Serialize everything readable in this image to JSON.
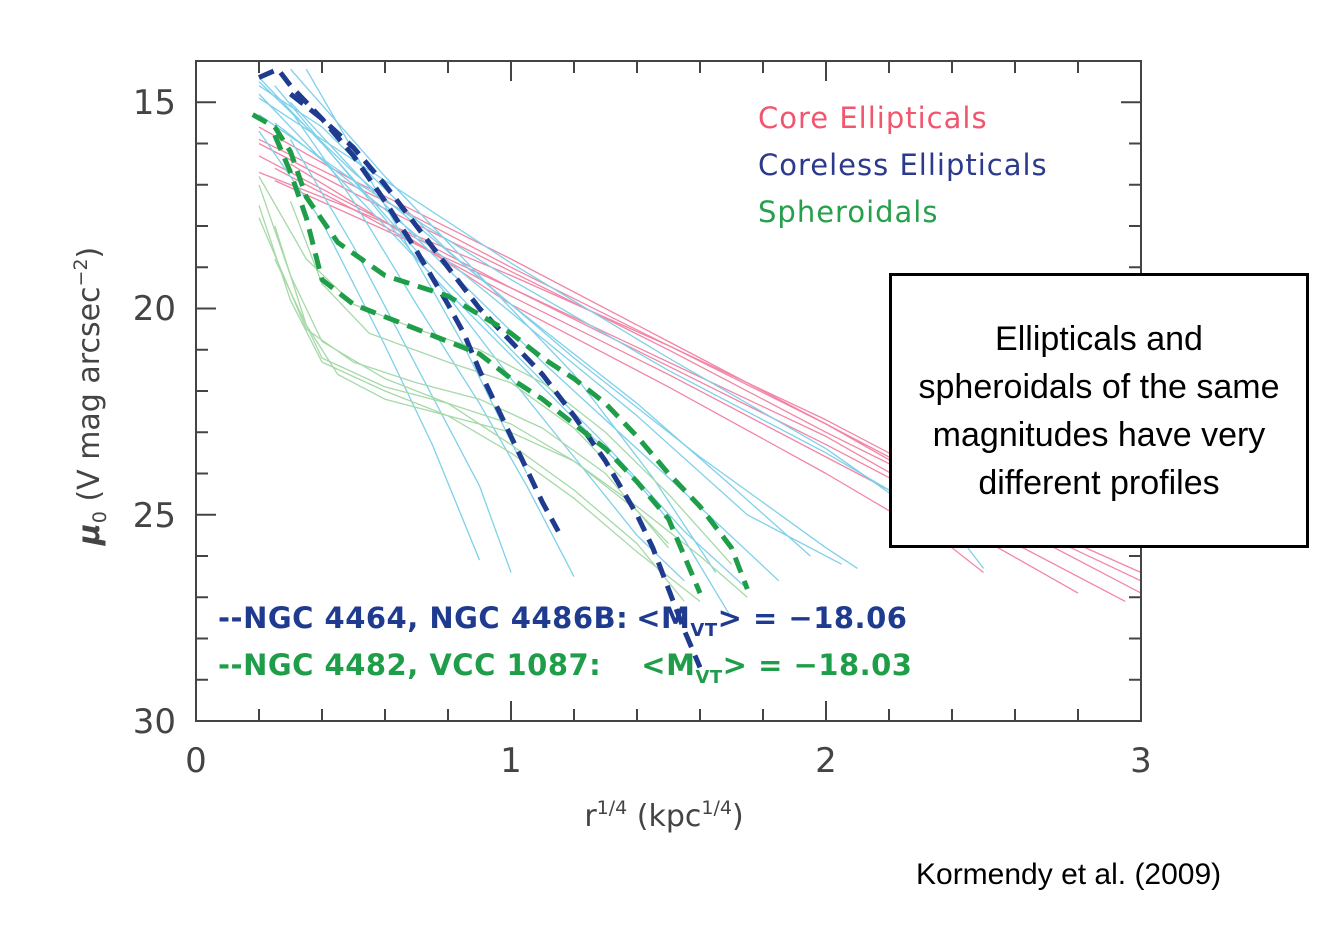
{
  "chart_data": {
    "type": "line",
    "xlabel": "r^{1/4}   (kpc^{1/4})",
    "ylabel": "μ₀   (V mag arcsec⁻²)",
    "xlim": [
      0,
      3
    ],
    "ylim": [
      30,
      14
    ],
    "y_inverted": true,
    "xticks": [
      "0",
      "1",
      "2",
      "3"
    ],
    "yticks": [
      "15",
      "20",
      "25",
      "30"
    ],
    "grid": false,
    "legend": {
      "placement": "top-right",
      "entries": [
        {
          "label": "Core Ellipticals",
          "color": "#f0566e"
        },
        {
          "label": "Coreless Ellipticals",
          "color": "#2b3a8c"
        },
        {
          "label": "Spheroidals",
          "color": "#27a04c"
        }
      ]
    },
    "annotations": [
      {
        "text": "--NGC 4464, NGC 4486B:",
        "mag_prefix": "<M",
        "mag_sub": "VT",
        "mag_suffix": "> = −18.06",
        "color": "#1f3b8f"
      },
      {
        "text": "--NGC 4482, VCC 1087:",
        "mag_prefix": "<M",
        "mag_sub": "VT",
        "mag_suffix": "> = −18.03",
        "color": "#1f9e4a"
      }
    ],
    "series": [
      {
        "group": "Core Ellipticals",
        "color": "#f286a6",
        "x": [
          0.2,
          0.5,
          1.0,
          1.5,
          2.0,
          2.5,
          3.0
        ],
        "values": [
          15.6,
          16.9,
          18.8,
          20.8,
          22.8,
          24.8,
          26.6
        ]
      },
      {
        "group": "Core Ellipticals",
        "color": "#f286a6",
        "x": [
          0.2,
          0.5,
          1.0,
          1.5,
          2.0,
          2.5,
          3.0
        ],
        "values": [
          16.0,
          17.2,
          19.1,
          21.0,
          23.0,
          24.9,
          26.9
        ]
      },
      {
        "group": "Core Ellipticals",
        "color": "#f286a6",
        "x": [
          0.2,
          0.5,
          1.0,
          1.5,
          2.0,
          2.5,
          2.95
        ],
        "values": [
          16.3,
          17.5,
          19.5,
          21.4,
          23.3,
          25.3,
          27.1
        ]
      },
      {
        "group": "Core Ellipticals",
        "color": "#f286a6",
        "x": [
          0.25,
          0.5,
          1.0,
          1.5,
          2.0,
          2.5,
          2.8
        ],
        "values": [
          16.6,
          17.6,
          19.7,
          21.6,
          23.6,
          25.6,
          26.9
        ]
      },
      {
        "group": "Core Ellipticals",
        "color": "#f286a6",
        "x": [
          0.3,
          0.6,
          1.0,
          1.5,
          2.0,
          2.4,
          2.5
        ],
        "values": [
          16.5,
          17.9,
          19.9,
          21.9,
          24.0,
          25.8,
          26.4
        ]
      },
      {
        "group": "Core Ellipticals",
        "color": "#f286a6",
        "x": [
          0.2,
          0.5,
          1.0,
          1.5,
          2.0,
          2.3
        ],
        "values": [
          16.7,
          17.6,
          19.2,
          20.9,
          22.8,
          24.1
        ]
      },
      {
        "group": "Core Ellipticals",
        "color": "#f286a6",
        "x": [
          0.2,
          0.6,
          1.0,
          1.5,
          2.0,
          2.5,
          3.0
        ],
        "values": [
          15.9,
          17.4,
          19.0,
          20.9,
          22.7,
          24.7,
          26.4
        ]
      },
      {
        "group": "Core Ellipticals",
        "color": "#f286a6",
        "x": [
          0.25,
          0.6,
          1.0,
          1.5,
          2.0,
          2.3
        ],
        "values": [
          16.9,
          18.1,
          19.5,
          21.3,
          23.1,
          24.4
        ]
      },
      {
        "group": "Coreless Ellipticals",
        "color": "#7fd0ea",
        "x": [
          0.2,
          0.4,
          0.6,
          0.8,
          1.0,
          1.2,
          1.4,
          1.6,
          1.8,
          2.0,
          2.1
        ],
        "values": [
          14.6,
          15.6,
          17.1,
          18.6,
          19.9,
          21.2,
          22.4,
          23.6,
          24.7,
          25.8,
          26.3
        ]
      },
      {
        "group": "Coreless Ellipticals",
        "color": "#7fd0ea",
        "x": [
          0.2,
          0.5,
          1.0,
          1.5,
          2.0,
          2.3
        ],
        "values": [
          14.9,
          16.4,
          18.9,
          21.2,
          23.4,
          25.0
        ]
      },
      {
        "group": "Coreless Ellipticals",
        "color": "#7fd0ea",
        "x": [
          0.2,
          0.5,
          1.0,
          1.5,
          2.0,
          2.4,
          2.5
        ],
        "values": [
          15.3,
          16.9,
          19.3,
          21.5,
          23.5,
          25.3,
          26.3
        ]
      },
      {
        "group": "Coreless Ellipticals",
        "color": "#7fd0ea",
        "x": [
          0.2,
          0.5,
          1.0,
          1.4,
          1.7,
          1.95
        ],
        "values": [
          14.5,
          16.7,
          19.9,
          22.3,
          24.3,
          26.0
        ]
      },
      {
        "group": "Coreless Ellipticals",
        "color": "#7fd0ea",
        "x": [
          0.2,
          0.4,
          0.7,
          1.0,
          1.3,
          1.55,
          1.75
        ],
        "values": [
          14.4,
          16.0,
          18.6,
          21.0,
          23.3,
          25.4,
          26.8
        ]
      },
      {
        "group": "Coreless Ellipticals",
        "color": "#7fd0ea",
        "x": [
          0.25,
          0.5,
          0.8,
          1.0,
          1.2,
          1.4,
          1.55
        ],
        "values": [
          14.6,
          16.9,
          19.7,
          21.7,
          23.6,
          25.5,
          26.6
        ]
      },
      {
        "group": "Coreless Ellipticals",
        "color": "#7fd0ea",
        "x": [
          0.3,
          0.5,
          0.7,
          0.9,
          1.05,
          1.2
        ],
        "values": [
          15.2,
          17.4,
          19.9,
          22.3,
          24.3,
          26.5
        ]
      },
      {
        "group": "Coreless Ellipticals",
        "color": "#7fd0ea",
        "x": [
          0.3,
          0.5,
          0.7,
          0.9,
          1.0
        ],
        "values": [
          15.9,
          18.5,
          21.4,
          24.3,
          26.4
        ]
      },
      {
        "group": "Coreless Ellipticals",
        "color": "#7fd0ea",
        "x": [
          0.2,
          0.4,
          0.6,
          0.75,
          0.9
        ],
        "values": [
          15.7,
          17.9,
          20.9,
          23.3,
          26.1
        ]
      },
      {
        "group": "Coreless Ellipticals",
        "color": "#7fd0ea",
        "x": [
          0.3,
          0.6,
          0.9,
          1.2,
          1.45,
          1.65
        ],
        "values": [
          14.2,
          16.8,
          19.2,
          21.6,
          24.1,
          26.4
        ]
      },
      {
        "group": "Coreless Ellipticals",
        "color": "#7fd0ea",
        "x": [
          0.2,
          0.5,
          0.8,
          1.1,
          1.4,
          1.55,
          1.7
        ],
        "values": [
          14.8,
          17.2,
          19.6,
          21.9,
          24.2,
          25.6,
          27.5
        ]
      },
      {
        "group": "Coreless Ellipticals",
        "color": "#7fd0ea",
        "x": [
          0.25,
          0.6,
          1.0,
          1.4,
          1.75,
          2.05
        ],
        "values": [
          15.5,
          17.6,
          20.1,
          22.6,
          25.0,
          26.2
        ]
      },
      {
        "group": "Coreless Ellipticals",
        "color": "#7fd0ea",
        "x": [
          0.3,
          0.7,
          1.1,
          1.5,
          1.85
        ],
        "values": [
          15.0,
          18.3,
          21.3,
          24.1,
          26.6
        ]
      },
      {
        "group": "Coreless Ellipticals",
        "color": "#7fd0ea",
        "x": [
          0.35,
          0.6,
          0.85,
          1.05
        ],
        "values": [
          14.2,
          17.5,
          20.9,
          24.0
        ]
      },
      {
        "group": "Spheroidals",
        "color": "#a6d9a8",
        "x": [
          0.2,
          0.3,
          0.4,
          0.6,
          0.8,
          1.0,
          1.2,
          1.4,
          1.55
        ],
        "values": [
          17.0,
          19.2,
          20.8,
          21.7,
          22.3,
          23.3,
          24.4,
          25.7,
          27.1
        ]
      },
      {
        "group": "Spheroidals",
        "color": "#a6d9a8",
        "x": [
          0.2,
          0.3,
          0.4,
          0.6,
          0.8,
          1.0,
          1.2,
          1.4,
          1.6
        ],
        "values": [
          17.5,
          19.8,
          21.3,
          22.0,
          22.6,
          23.5,
          24.6,
          25.9,
          27.1
        ]
      },
      {
        "group": "Spheroidals",
        "color": "#a6d9a8",
        "x": [
          0.25,
          0.35,
          0.45,
          0.6,
          0.8,
          1.0,
          1.2,
          1.4,
          1.5
        ],
        "values": [
          18.0,
          20.4,
          21.6,
          22.2,
          22.6,
          23.0,
          23.7,
          24.9,
          25.7
        ]
      },
      {
        "group": "Spheroidals",
        "color": "#a6d9a8",
        "x": [
          0.2,
          0.35,
          0.5,
          0.7,
          0.9,
          1.1,
          1.3,
          1.5,
          1.7
        ],
        "values": [
          16.8,
          18.8,
          19.9,
          20.5,
          21.0,
          21.8,
          23.0,
          24.5,
          26.2
        ]
      },
      {
        "group": "Spheroidals",
        "color": "#a6d9a8",
        "x": [
          0.2,
          0.35,
          0.5,
          0.7,
          0.9,
          1.1,
          1.3,
          1.5
        ],
        "values": [
          17.8,
          20.5,
          21.3,
          21.8,
          22.2,
          22.9,
          24.0,
          25.8
        ]
      },
      {
        "group": "Spheroidals",
        "color": "#a6d9a8",
        "x": [
          0.3,
          0.4,
          0.55,
          0.8,
          1.0,
          1.2,
          1.35
        ],
        "values": [
          17.4,
          19.4,
          20.6,
          21.3,
          21.8,
          22.9,
          24.1
        ]
      },
      {
        "group": "Spheroidals",
        "color": "#a6d9a8",
        "x": [
          0.25,
          0.4,
          0.6,
          0.8,
          1.0,
          1.2,
          1.4,
          1.6,
          1.75
        ],
        "values": [
          18.8,
          21.2,
          21.9,
          22.3,
          22.8,
          23.7,
          24.8,
          26.0,
          27.0
        ]
      },
      {
        "group": "NGC 4464, NGC 4486B",
        "color": "#1f3b8f",
        "dashed": true,
        "x": [
          0.2,
          0.26,
          0.3,
          0.4,
          0.5,
          0.6,
          0.7,
          0.8,
          0.85,
          0.9,
          0.95,
          1.0,
          1.05,
          1.1,
          1.15
        ],
        "values": [
          14.4,
          14.2,
          14.6,
          15.4,
          16.3,
          17.4,
          18.6,
          19.9,
          20.6,
          21.5,
          22.3,
          23.1,
          23.9,
          24.7,
          25.4
        ]
      },
      {
        "group": "NGC 4464, NGC 4486B",
        "color": "#1f3b8f",
        "dashed": true,
        "x": [
          0.3,
          0.4,
          0.5,
          0.6,
          0.7,
          0.8,
          0.9,
          1.0,
          1.1,
          1.2,
          1.3,
          1.4,
          1.45,
          1.5,
          1.55,
          1.6
        ],
        "values": [
          14.8,
          15.4,
          16.1,
          17.0,
          18.0,
          19.0,
          20.0,
          20.8,
          21.6,
          22.6,
          23.7,
          25.0,
          25.8,
          26.8,
          27.8,
          28.7
        ]
      },
      {
        "group": "NGC 4482, VCC 1087",
        "color": "#1f9e4a",
        "dashed": true,
        "x": [
          0.18,
          0.25,
          0.3,
          0.35,
          0.45,
          0.6,
          0.8,
          1.0,
          1.1,
          1.2,
          1.3,
          1.4,
          1.5,
          1.6,
          1.7,
          1.75
        ],
        "values": [
          15.3,
          15.6,
          16.2,
          17.3,
          18.4,
          19.2,
          19.7,
          20.6,
          21.2,
          21.7,
          22.3,
          23.1,
          24.0,
          24.8,
          25.8,
          26.8
        ]
      },
      {
        "group": "NGC 4482, VCC 1087",
        "color": "#1f9e4a",
        "dashed": true,
        "x": [
          0.25,
          0.3,
          0.35,
          0.4,
          0.5,
          0.6,
          0.7,
          0.8,
          0.9,
          1.0,
          1.1,
          1.2,
          1.3,
          1.4,
          1.5,
          1.55,
          1.6
        ],
        "values": [
          15.8,
          16.7,
          17.8,
          19.3,
          19.9,
          20.2,
          20.5,
          20.8,
          21.1,
          21.7,
          22.2,
          22.8,
          23.4,
          24.2,
          25.1,
          26.0,
          26.9
        ]
      }
    ]
  },
  "callout": {
    "text": "Ellipticals and spheroidals of the same magnitudes have very different profiles"
  },
  "citation": "Kormendy et al. (2009)"
}
